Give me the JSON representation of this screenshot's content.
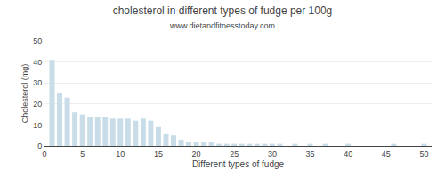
{
  "chart_data": {
    "type": "bar",
    "title": "cholesterol in different types of fudge per 100g",
    "subtitle": "www.dietandfitnesstoday.com",
    "xlabel": "Different types of fudge",
    "ylabel": "Cholesterol (mg)",
    "color": "#c8dde8",
    "x": [
      1,
      2,
      3,
      4,
      5,
      6,
      7,
      8,
      9,
      10,
      11,
      12,
      13,
      14,
      15,
      16,
      17,
      18,
      19,
      20,
      21,
      22,
      23,
      24,
      25,
      26,
      27,
      28,
      29,
      30,
      31,
      32,
      33,
      34,
      35,
      36,
      37,
      38,
      39,
      40,
      41,
      42,
      43,
      44,
      45,
      46,
      47,
      48,
      49,
      50
    ],
    "values": [
      41,
      25,
      23,
      16,
      15,
      14,
      14,
      14,
      13,
      13,
      13,
      12,
      13,
      12,
      9,
      6,
      5,
      3,
      2,
      2,
      2,
      2,
      1,
      1,
      1,
      1,
      1,
      1,
      1,
      1,
      1,
      0,
      1,
      0,
      1,
      0,
      1,
      0,
      0,
      1,
      0,
      0,
      0,
      0,
      0,
      1,
      0,
      0,
      0,
      1
    ],
    "xlim": [
      0.0,
      51
    ],
    "ylim": [
      0,
      50
    ],
    "xticks": [
      0,
      5,
      10,
      15,
      20,
      25,
      30,
      35,
      40,
      45,
      50
    ],
    "yticks": [
      0,
      10,
      20,
      30,
      40,
      50
    ],
    "grid": "y"
  }
}
